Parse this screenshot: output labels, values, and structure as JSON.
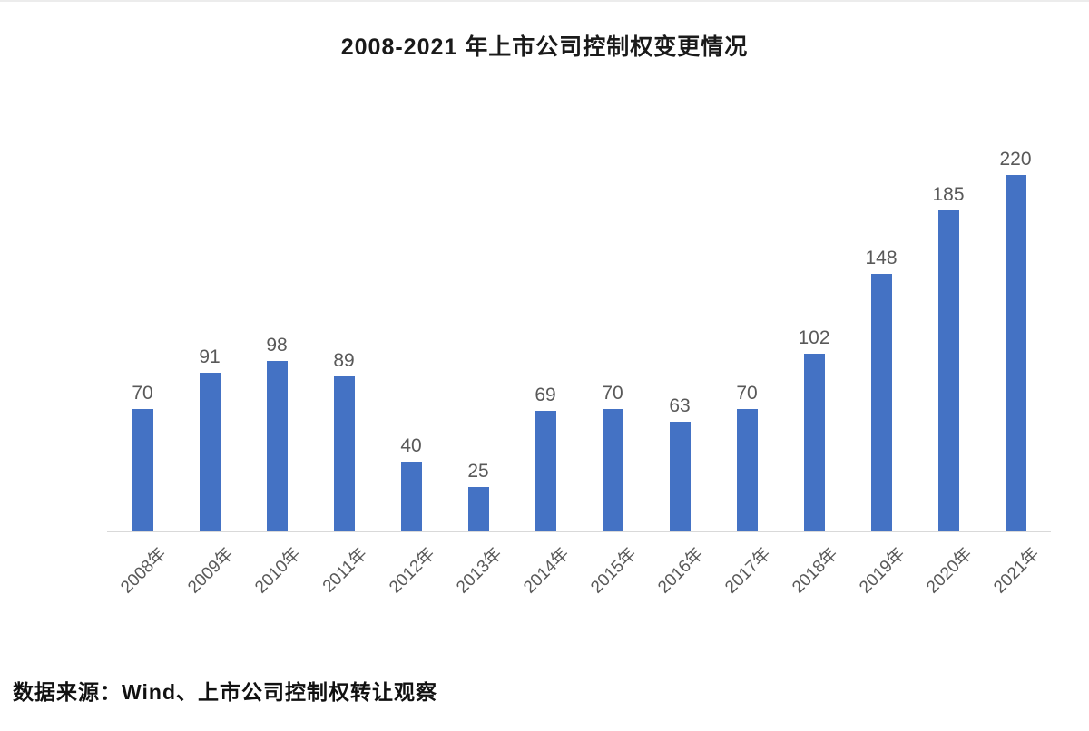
{
  "title": "2008-2021 年上市公司控制权变更情况",
  "source_note": "数据来源：Wind、上市公司控制权转让观察",
  "colors": {
    "bar": "#4472c4",
    "axis_line": "#d9d9d9",
    "value_label": "#595959",
    "tick_label": "#595959",
    "title_text": "#1a1a1a"
  },
  "chart_data": {
    "type": "bar",
    "title": "2008-2021 年上市公司控制权变更情况",
    "categories": [
      "2008年",
      "2009年",
      "2010年",
      "2011年",
      "2012年",
      "2013年",
      "2014年",
      "2015年",
      "2016年",
      "2017年",
      "2018年",
      "2019年",
      "2020年",
      "2021年"
    ],
    "values": [
      70,
      91,
      98,
      89,
      40,
      25,
      69,
      70,
      63,
      70,
      102,
      148,
      185,
      220
    ],
    "xlabel": "",
    "ylabel": "",
    "ylim": [
      0,
      220
    ],
    "grid": false,
    "legend": false,
    "data_labels": true,
    "bar_color": "#4472c4",
    "tick_rotation_deg": -45
  }
}
